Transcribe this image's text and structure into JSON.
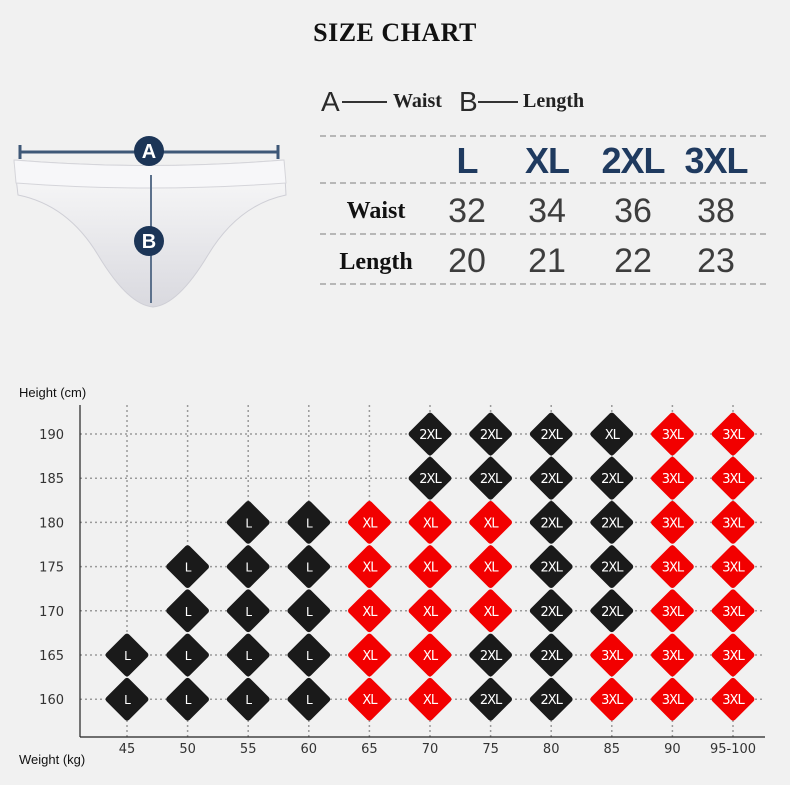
{
  "title": "SIZE CHART",
  "legend": {
    "a_letter": "A",
    "a_label": "Waist",
    "b_letter": "B",
    "b_label": "Length"
  },
  "diagram": {
    "marker_a": "A",
    "marker_b": "B",
    "accent": "#1c3557"
  },
  "size_table": {
    "headers": [
      "L",
      "XL",
      "2XL",
      "3XL"
    ],
    "rows": [
      {
        "label": "Waist",
        "values": [
          "32",
          "34",
          "36",
          "38"
        ]
      },
      {
        "label": "Length",
        "values": [
          "20",
          "21",
          "22",
          "23"
        ]
      }
    ]
  },
  "chart_data": {
    "type": "heatmap",
    "ylabel": "Height  (cm)",
    "xlabel": "Weight (kg)",
    "x": [
      "45",
      "50",
      "55",
      "60",
      "65",
      "70",
      "75",
      "80",
      "85",
      "90",
      "95-100"
    ],
    "y": [
      "190",
      "185",
      "180",
      "175",
      "170",
      "165",
      "160"
    ],
    "grid": true,
    "colors": {
      "L": "#1a1a1a",
      "2XL": "#1a1a1a",
      "XL": "#f20000",
      "3XL": "#f20000"
    },
    "cells": [
      [
        null,
        null,
        null,
        null,
        null,
        "2XL",
        "2XL",
        "2XL",
        "XL",
        "3XL",
        "3XL"
      ],
      [
        null,
        null,
        null,
        null,
        null,
        "2XL",
        "2XL",
        "2XL",
        "2XL",
        "3XL",
        "3XL"
      ],
      [
        null,
        null,
        "L",
        "L",
        "XL",
        "XL",
        "XL",
        "2XL",
        "2XL",
        "3XL",
        "3XL"
      ],
      [
        null,
        "L",
        "L",
        "L",
        "XL",
        "XL",
        "XL",
        "2XL",
        "2XL",
        "3XL",
        "3XL"
      ],
      [
        null,
        "L",
        "L",
        "L",
        "XL",
        "XL",
        "XL",
        "2XL",
        "2XL",
        "3XL",
        "3XL"
      ],
      [
        "L",
        "L",
        "L",
        "L",
        "XL",
        "XL",
        "2XL",
        "2XL",
        "3XL",
        "3XL",
        "3XL"
      ],
      [
        "L",
        "L",
        "L",
        "L",
        "XL",
        "XL",
        "2XL",
        "2XL",
        "3XL",
        "3XL",
        "3XL"
      ]
    ],
    "cell_colors_override": {
      "190|85": "#1a1a1a"
    }
  }
}
